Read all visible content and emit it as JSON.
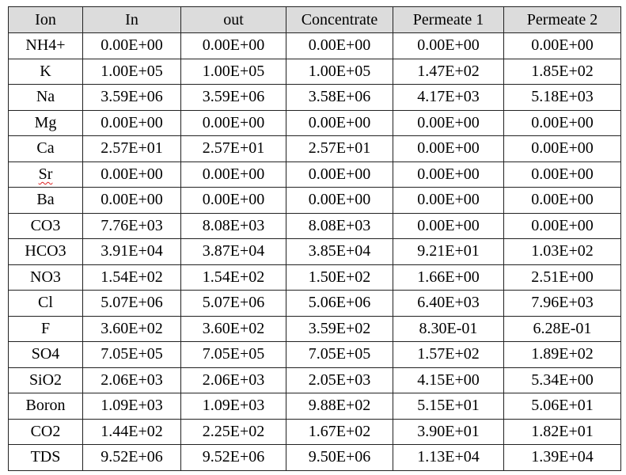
{
  "table": {
    "header": [
      "Ion",
      "In",
      "out",
      "Concentrate",
      "Permeate 1",
      "Permeate 2"
    ],
    "rows": [
      [
        "NH4+",
        "0.00E+00",
        "0.00E+00",
        "0.00E+00",
        "0.00E+00",
        "0.00E+00"
      ],
      [
        "K",
        "1.00E+05",
        "1.00E+05",
        "1.00E+05",
        "1.47E+02",
        "1.85E+02"
      ],
      [
        "Na",
        "3.59E+06",
        "3.59E+06",
        "3.58E+06",
        "4.17E+03",
        "5.18E+03"
      ],
      [
        "Mg",
        "0.00E+00",
        "0.00E+00",
        "0.00E+00",
        "0.00E+00",
        "0.00E+00"
      ],
      [
        "Ca",
        "2.57E+01",
        "2.57E+01",
        "2.57E+01",
        "0.00E+00",
        "0.00E+00"
      ],
      [
        "Sr",
        "0.00E+00",
        "0.00E+00",
        "0.00E+00",
        "0.00E+00",
        "0.00E+00"
      ],
      [
        "Ba",
        "0.00E+00",
        "0.00E+00",
        "0.00E+00",
        "0.00E+00",
        "0.00E+00"
      ],
      [
        "CO3",
        "7.76E+03",
        "8.08E+03",
        "8.08E+03",
        "0.00E+00",
        "0.00E+00"
      ],
      [
        "HCO3",
        "3.91E+04",
        "3.87E+04",
        "3.85E+04",
        "9.21E+01",
        "1.03E+02"
      ],
      [
        "NO3",
        "1.54E+02",
        "1.54E+02",
        "1.50E+02",
        "1.66E+00",
        "2.51E+00"
      ],
      [
        "Cl",
        "5.07E+06",
        "5.07E+06",
        "5.06E+06",
        "6.40E+03",
        "7.96E+03"
      ],
      [
        "F",
        "3.60E+02",
        "3.60E+02",
        "3.59E+02",
        "8.30E-01",
        "6.28E-01"
      ],
      [
        "SO4",
        "7.05E+05",
        "7.05E+05",
        "7.05E+05",
        "1.57E+02",
        "1.89E+02"
      ],
      [
        "SiO2",
        "2.06E+03",
        "2.06E+03",
        "2.05E+03",
        "4.15E+00",
        "5.34E+00"
      ],
      [
        "Boron",
        "1.09E+03",
        "1.09E+03",
        "9.88E+02",
        "5.15E+01",
        "5.06E+01"
      ],
      [
        "CO2",
        "1.44E+02",
        "2.25E+02",
        "1.67E+02",
        "3.90E+01",
        "1.82E+01"
      ],
      [
        "TDS",
        "9.52E+06",
        "9.52E+06",
        "9.50E+06",
        "1.13E+04",
        "1.39E+04"
      ]
    ]
  }
}
